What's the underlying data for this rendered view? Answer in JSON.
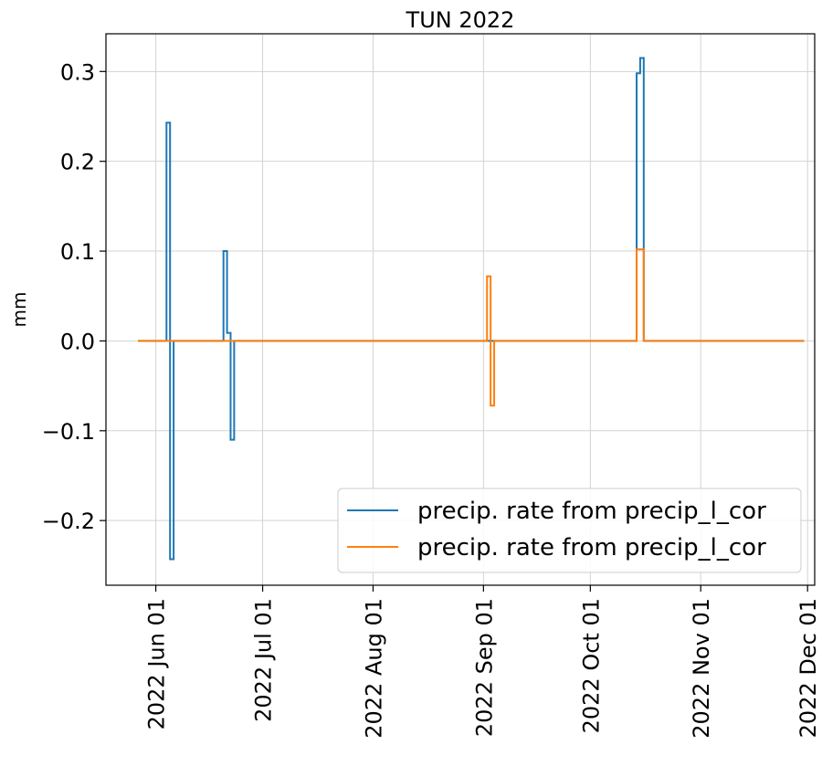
{
  "chart_data": {
    "type": "line",
    "step": true,
    "title": "TUN 2022",
    "xlabel": "",
    "ylabel": "mm",
    "x_axis": "date",
    "xlim": [
      "2022-05-18",
      "2022-12-03"
    ],
    "ylim": [
      -0.272,
      0.342
    ],
    "grid": true,
    "legend_position": "lower-right",
    "x_ticks": [
      {
        "date": "2022-06-01",
        "label": "2022 Jun 01"
      },
      {
        "date": "2022-07-01",
        "label": "2022 Jul 01"
      },
      {
        "date": "2022-08-01",
        "label": "2022 Aug 01"
      },
      {
        "date": "2022-09-01",
        "label": "2022 Sep 01"
      },
      {
        "date": "2022-10-01",
        "label": "2022 Oct 01"
      },
      {
        "date": "2022-11-01",
        "label": "2022 Nov 01"
      },
      {
        "date": "2022-12-01",
        "label": "2022 Dec 01"
      }
    ],
    "y_ticks": [
      {
        "value": 0.3,
        "label": "0.3"
      },
      {
        "value": 0.2,
        "label": "0.2"
      },
      {
        "value": 0.1,
        "label": "0.1"
      },
      {
        "value": 0.0,
        "label": "0.0"
      },
      {
        "value": -0.1,
        "label": "−0.1"
      },
      {
        "value": -0.2,
        "label": "−0.2"
      }
    ],
    "series": [
      {
        "name": "precip. rate from precip_l_cor",
        "color": "#1f77b4",
        "points": [
          [
            "2022-05-27",
            0.0
          ],
          [
            "2022-06-04",
            0.0
          ],
          [
            "2022-06-04",
            0.243
          ],
          [
            "2022-06-05",
            0.243
          ],
          [
            "2022-06-05",
            -0.243
          ],
          [
            "2022-06-06",
            -0.243
          ],
          [
            "2022-06-06",
            0.0
          ],
          [
            "2022-06-20",
            0.0
          ],
          [
            "2022-06-20",
            0.1
          ],
          [
            "2022-06-21",
            0.1
          ],
          [
            "2022-06-21",
            0.009
          ],
          [
            "2022-06-22",
            0.009
          ],
          [
            "2022-06-22",
            -0.11
          ],
          [
            "2022-06-23",
            -0.11
          ],
          [
            "2022-06-23",
            0.0
          ],
          [
            "2022-10-14",
            0.0
          ],
          [
            "2022-10-14",
            0.298
          ],
          [
            "2022-10-15",
            0.298
          ],
          [
            "2022-10-15",
            0.315
          ],
          [
            "2022-10-16",
            0.315
          ],
          [
            "2022-10-16",
            0.0
          ],
          [
            "2022-11-30",
            0.0
          ]
        ]
      },
      {
        "name": "precip. rate from precip_l_cor",
        "color": "#ff7f0e",
        "points": [
          [
            "2022-05-27",
            0.0
          ],
          [
            "2022-09-02",
            0.0
          ],
          [
            "2022-09-02",
            0.072
          ],
          [
            "2022-09-03",
            0.072
          ],
          [
            "2022-09-03",
            -0.072
          ],
          [
            "2022-09-04",
            -0.072
          ],
          [
            "2022-09-04",
            0.0
          ],
          [
            "2022-10-14",
            0.0
          ],
          [
            "2022-10-14",
            0.102
          ],
          [
            "2022-10-16",
            0.102
          ],
          [
            "2022-10-16",
            0.0
          ],
          [
            "2022-11-30",
            0.0
          ]
        ]
      }
    ]
  }
}
